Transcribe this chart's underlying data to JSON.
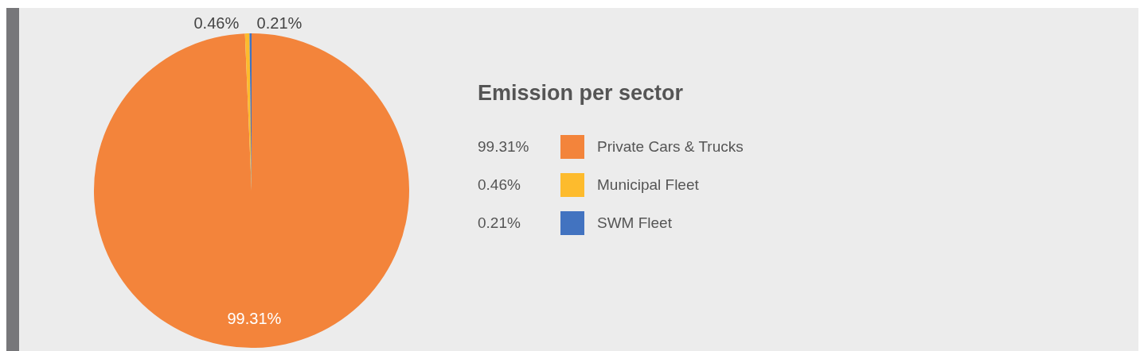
{
  "chart_data": {
    "type": "pie",
    "title": "Emission per sector",
    "categories": [
      "Private Cars & Trucks",
      "Municipal Fleet",
      "SWM Fleet"
    ],
    "values": [
      99.31,
      0.46,
      0.21
    ],
    "colors": [
      "#f3843b",
      "#fdbb2d",
      "#4273c0"
    ],
    "value_labels": [
      "99.31%",
      "0.46%",
      "0.21%"
    ],
    "legend": "right"
  }
}
